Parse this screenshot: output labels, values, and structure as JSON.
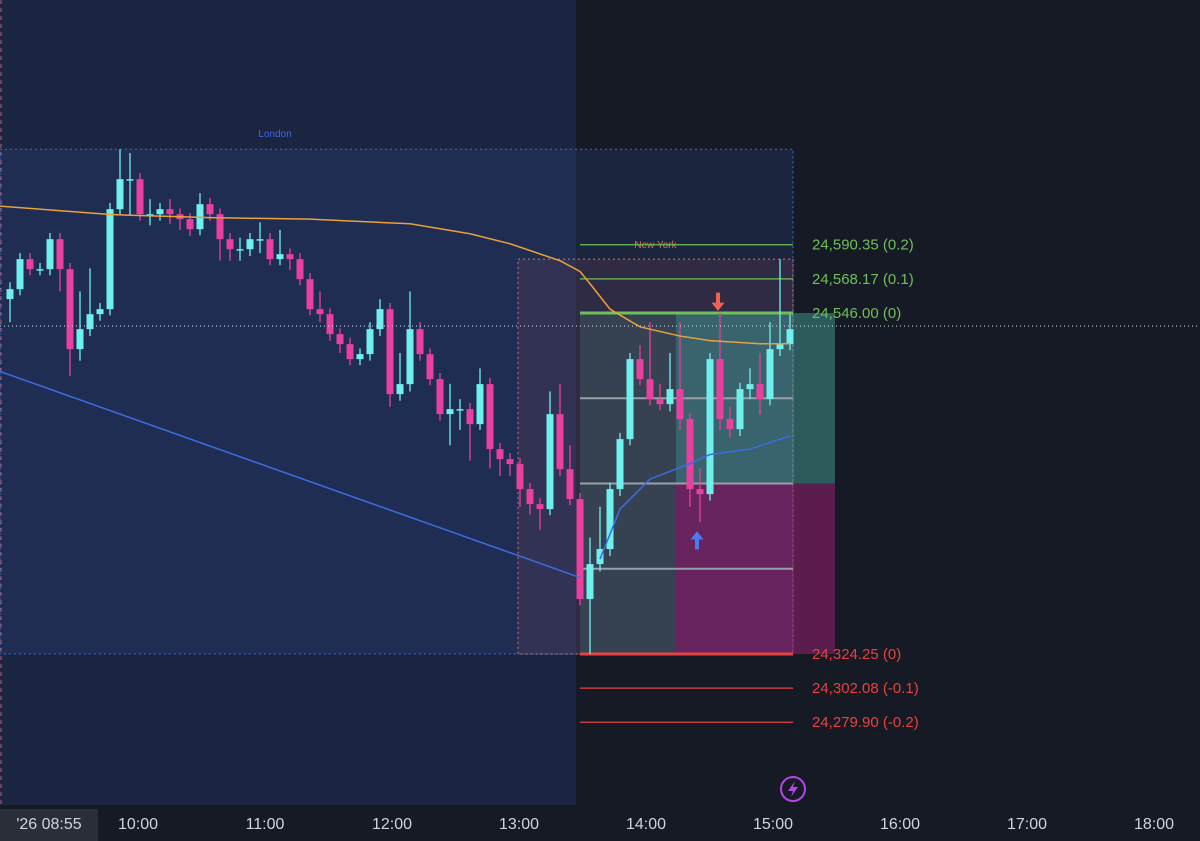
{
  "chart_data": {
    "type": "candlestick",
    "ylim": [
      24226.1,
      24749.5
    ],
    "xlim": [
      -1,
      119
    ],
    "candles": {
      "bull_color": "#6ff0ec",
      "bear_color": "#e8409e",
      "open": [
        24555,
        24561.5,
        24581,
        24574.5,
        24574.5,
        24594,
        24574.5,
        24522.5,
        24535.5,
        24545.25,
        24548.5,
        24613.5,
        24633,
        24633,
        24610.25,
        24610.25,
        24613.5,
        24610.25,
        24607,
        24600.5,
        24616.75,
        24610.25,
        24594,
        24587.5,
        24587.5,
        24594,
        24594,
        24581,
        24584.25,
        24581,
        24568,
        24548.5,
        24545.25,
        24532.25,
        24525.75,
        24516,
        24519.25,
        24535.5,
        24548.5,
        24493.25,
        24499.75,
        24535.5,
        24519.25,
        24503,
        24480.25,
        24483.5,
        24483.5,
        24473.75,
        24499.75,
        24457.5,
        24451,
        24447.75,
        24431.5,
        24421.75,
        24418.5,
        24480.25,
        24444.5,
        24425,
        24360,
        24382.75,
        24392.5,
        24431.5,
        24464,
        24516,
        24503,
        24490,
        24486.75,
        24496.5,
        24477,
        24431.5,
        24428.25,
        24516,
        24477,
        24470.5,
        24496.5,
        24499.75,
        24490,
        24522.5,
        24525.75
      ],
      "high": [
        24566,
        24585,
        24585,
        24578.5,
        24598,
        24598,
        24578.5,
        24560,
        24575,
        24552.5,
        24617.5,
        24652.5,
        24650,
        24637,
        24620,
        24617.5,
        24620,
        24614,
        24611,
        24624,
        24620.75,
        24614,
        24598,
        24595,
        24598,
        24605,
        24598,
        24600,
        24588,
        24585,
        24572,
        24560,
        24549,
        24536,
        24530,
        24523,
        24540,
        24555,
        24552.5,
        24520,
        24560,
        24540,
        24523,
        24507,
        24500,
        24490,
        24487.5,
        24510,
        24503.75,
        24461.5,
        24455,
        24451.75,
        24435.5,
        24425.75,
        24495,
        24500,
        24460,
        24429,
        24400,
        24420,
        24435.5,
        24468,
        24520,
        24525,
        24540,
        24500,
        24520,
        24540,
        24481,
        24445,
        24520,
        24546,
        24485,
        24500.5,
        24510,
        24520,
        24540,
        24581,
        24545
      ],
      "low": [
        24540,
        24557.5,
        24570.5,
        24570.5,
        24570.5,
        24560,
        24505,
        24515,
        24531,
        24541,
        24544.5,
        24609.5,
        24610,
        24606,
        24603,
        24606,
        24604,
        24600,
        24596,
        24596.5,
        24606,
        24580,
        24580,
        24580,
        24583,
        24585,
        24577,
        24577,
        24574,
        24564,
        24544.5,
        24540,
        24528,
        24520,
        24512,
        24512,
        24515,
        24531,
        24485,
        24489,
        24495,
        24515,
        24499,
        24476,
        24460,
        24470,
        24450,
        24470,
        24445,
        24440,
        24440,
        24420,
        24415,
        24405,
        24414.5,
        24440,
        24421,
        24356,
        24324.25,
        24378,
        24388,
        24427,
        24460,
        24499,
        24486,
        24482.75,
        24482,
        24470,
        24420,
        24410,
        24424,
        24470,
        24465,
        24466,
        24490,
        24480,
        24486,
        24518,
        24521.75
      ],
      "close": [
        24561.5,
        24581,
        24574.5,
        24574.5,
        24594,
        24574.5,
        24522.5,
        24535.5,
        24545.25,
        24548.5,
        24613.5,
        24633,
        24633,
        24610.25,
        24610.25,
        24613.5,
        24610.25,
        24607,
        24600.5,
        24616.75,
        24610.25,
        24594,
        24587.5,
        24587.5,
        24594,
        24594,
        24581,
        24584.25,
        24581,
        24568,
        24548.5,
        24545.25,
        24532.25,
        24525.75,
        24516,
        24519.25,
        24535.5,
        24548.5,
        24493.25,
        24499.75,
        24535.5,
        24519.25,
        24503,
        24480.25,
        24483.5,
        24483.5,
        24473.75,
        24499.75,
        24457.5,
        24451,
        24447.75,
        24431.5,
        24421.75,
        24418.5,
        24480.25,
        24444.5,
        24425,
        24360,
        24382.75,
        24392.5,
        24431.5,
        24464,
        24516,
        24503,
        24490,
        24486.75,
        24496.5,
        24477,
        24431.5,
        24428.25,
        24516,
        24477,
        24470.5,
        24496.5,
        24499.75,
        24490,
        24522.5,
        24525.75,
        24535.5
      ]
    },
    "lines": [
      {
        "color": "#e9a23b",
        "x": [
          -1,
          10,
          20,
          30,
          40,
          46,
          50,
          55,
          57,
          58,
          60,
          63,
          67,
          70,
          75,
          78
        ],
        "values": [
          24615.5,
          24610,
          24608,
          24607,
          24604,
          24597.5,
          24591,
          24580,
          24573,
          24565,
          24548.5,
          24537,
          24531,
          24528,
          24526,
          24526
        ]
      },
      {
        "color": "#3d6be0",
        "x": [
          -1,
          57
        ],
        "values": [
          24508,
          24374
        ]
      },
      {
        "color": "#3d6be0",
        "x": [
          59,
          61,
          64,
          68,
          70,
          74,
          77,
          78
        ],
        "values": [
          24386,
          24418.5,
          24438,
          24448,
          24454,
          24457.5,
          24464,
          24466
        ]
      }
    ],
    "sessions": [
      {
        "name": "London",
        "color": "#3d6be0",
        "x0": -1,
        "x1": 78.3,
        "high": 24652.5,
        "low": 24324.25
      },
      {
        "name": "New York",
        "color": "#e0704a",
        "x0": 50.8,
        "x1": 78.3,
        "high": 24581,
        "low": 24324.25
      }
    ],
    "fib_levels": [
      {
        "value": 24590.35,
        "label": "24,590.35 (0.2)",
        "color": "#6fbf5a"
      },
      {
        "value": 24568.17,
        "label": "24,568.17 (0.1)",
        "color": "#6fbf5a"
      },
      {
        "value": 24546.0,
        "label": "24,546.00 (0)",
        "color": "#6fbf5a"
      },
      {
        "value": 24324.25,
        "label": "24,324.25 (0)",
        "color": "#e5433f"
      },
      {
        "value": 24302.08,
        "label": "24,302.08 (-0.1)",
        "color": "#e5433f"
      },
      {
        "value": 24279.9,
        "label": "24,279.90 (-0.2)",
        "color": "#e5433f"
      }
    ],
    "fib_x": [
      57,
      78.3
    ],
    "inner_levels": [
      24490.56,
      24435.13,
      24379.69
    ],
    "range_box": {
      "x0": 57,
      "x1": 66.6,
      "high": 24546,
      "low": 24324.25
    },
    "position": {
      "x0": 66.6,
      "x1": 82.5,
      "target": 24546,
      "entry": 24435.13,
      "stop": 24324.25
    },
    "last_price": 24537.5,
    "signals": [
      {
        "kind": "sell",
        "color": "#f0624d",
        "x": 70.8,
        "value": 24553.1
      },
      {
        "kind": "buy",
        "color": "#4a7cf0",
        "x": 68.7,
        "value": 24398.4
      }
    ],
    "time_axis": {
      "cursor_label": "'26 08:55",
      "labels": [
        "10:00",
        "11:00",
        "12:00",
        "13:00",
        "14:00",
        "15:00",
        "16:00",
        "17:00",
        "18:00"
      ]
    }
  }
}
